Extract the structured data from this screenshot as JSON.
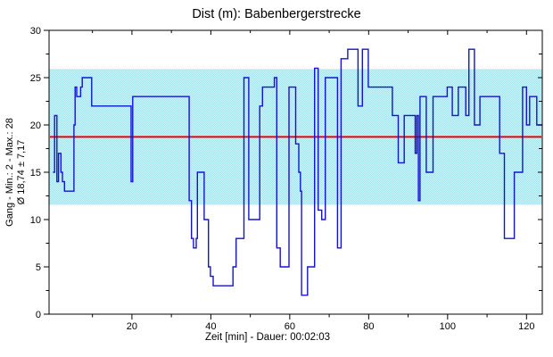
{
  "title": "Dist (m): Babenbergerstrecke",
  "y_axis_label_line1": "Gang - Min.: 2 - Max.: 28",
  "y_axis_label_line2": "Ø 18,74 ± 7,17",
  "x_axis_label": "Zeit [min] - Dauer: 00:02:03",
  "chart_data": {
    "type": "line",
    "line_style": "step-after",
    "title": "Dist (m): Babenbergerstrecke",
    "xlabel": "Zeit [min] - Dauer: 00:02:03",
    "ylabel_line1": "Gang - Min.: 2 - Max.: 28",
    "ylabel_line2": "Ø 18,74 ± 7,17",
    "xlim": [
      -1,
      124
    ],
    "ylim": [
      0,
      30
    ],
    "x_major_ticks": [
      20,
      40,
      60,
      80,
      100,
      120
    ],
    "x_minor_ticks": [
      10,
      30,
      50,
      70,
      90,
      110
    ],
    "y_major_ticks": [
      0,
      5,
      10,
      15,
      20,
      25,
      30
    ],
    "y_minor_ticks": [
      2.5,
      7.5,
      12.5,
      17.5,
      22.5,
      27.5
    ],
    "grid": false,
    "legend": "none",
    "stats": {
      "min": 2,
      "max": 28,
      "mean": 18.74,
      "sd": 7.17,
      "duration": "00:02:03"
    },
    "mean_line": {
      "value": 18.74,
      "color": "#f20000"
    },
    "band": {
      "low": 11.57,
      "high": 25.91,
      "color_a": "#a5dde9",
      "color_b": "#dff3f7"
    },
    "series": [
      {
        "name": "Gang",
        "color": "#1414cc",
        "points": [
          [
            0,
            15
          ],
          [
            0.4,
            21
          ],
          [
            1.0,
            14
          ],
          [
            1.4,
            17
          ],
          [
            2.0,
            15
          ],
          [
            2.4,
            14
          ],
          [
            2.9,
            13
          ],
          [
            5.3,
            20
          ],
          [
            5.6,
            24
          ],
          [
            6.0,
            23
          ],
          [
            7.0,
            24
          ],
          [
            7.4,
            25
          ],
          [
            9.8,
            22
          ],
          [
            19.8,
            14
          ],
          [
            20.2,
            23
          ],
          [
            34.5,
            12
          ],
          [
            35.1,
            8
          ],
          [
            35.6,
            7
          ],
          [
            36.3,
            8
          ],
          [
            36.6,
            15
          ],
          [
            38.3,
            10
          ],
          [
            39.4,
            5
          ],
          [
            39.9,
            4
          ],
          [
            40.6,
            3
          ],
          [
            45.6,
            5
          ],
          [
            46.4,
            8
          ],
          [
            48.4,
            25
          ],
          [
            49.6,
            10
          ],
          [
            52.4,
            22
          ],
          [
            53.1,
            24
          ],
          [
            56.1,
            25
          ],
          [
            56.7,
            7
          ],
          [
            57.6,
            5
          ],
          [
            59.8,
            24
          ],
          [
            61.5,
            18
          ],
          [
            62.3,
            15
          ],
          [
            62.7,
            13
          ],
          [
            63.0,
            2
          ],
          [
            64.5,
            5
          ],
          [
            66.3,
            26
          ],
          [
            67.2,
            11
          ],
          [
            68.1,
            10
          ],
          [
            69.0,
            25
          ],
          [
            72.1,
            7
          ],
          [
            73.0,
            27
          ],
          [
            74.7,
            28
          ],
          [
            77.3,
            22
          ],
          [
            78.4,
            28
          ],
          [
            79.9,
            24
          ],
          [
            86.0,
            21
          ],
          [
            87.5,
            16
          ],
          [
            89.0,
            21
          ],
          [
            91.8,
            17
          ],
          [
            92.2,
            21
          ],
          [
            92.6,
            12
          ],
          [
            93.0,
            23
          ],
          [
            94.6,
            15
          ],
          [
            96.3,
            23
          ],
          [
            99.9,
            24
          ],
          [
            101.2,
            21
          ],
          [
            102.7,
            24
          ],
          [
            104.6,
            21
          ],
          [
            105.4,
            28
          ],
          [
            106.8,
            20
          ],
          [
            108.2,
            23
          ],
          [
            113.2,
            17
          ],
          [
            114.4,
            8
          ],
          [
            116.9,
            15
          ],
          [
            119.0,
            24
          ],
          [
            120.0,
            20
          ],
          [
            120.8,
            23
          ],
          [
            122.6,
            20
          ],
          [
            123.8,
            20
          ]
        ]
      }
    ]
  }
}
